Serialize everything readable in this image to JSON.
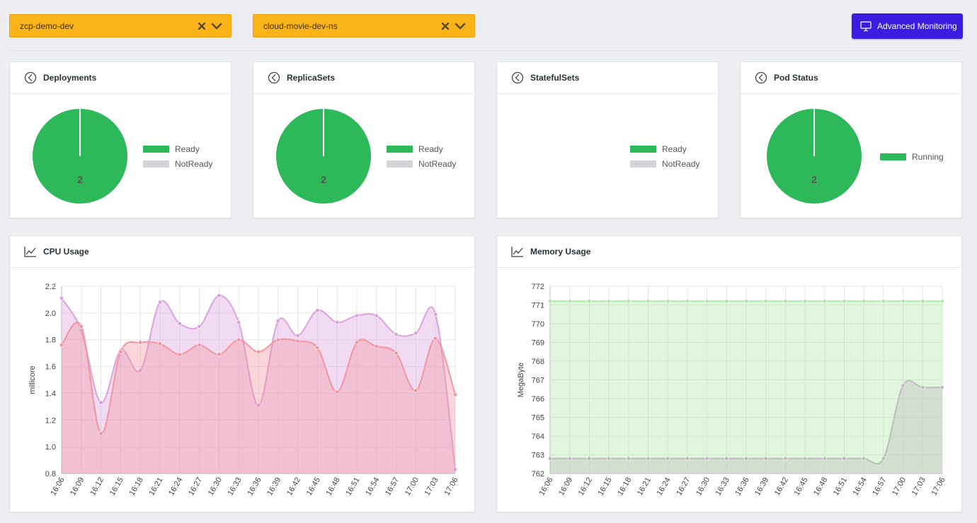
{
  "filters": {
    "cluster": "zcp-demo-dev",
    "namespace": "cloud-movie-dev-ns"
  },
  "toolbar": {
    "advanced_label": "Advanced Monitoring"
  },
  "colors": {
    "ready": "#2db85a",
    "notready": "#d2d4d8",
    "select_bg": "#fbb31a",
    "button_bg": "#3a1de0"
  },
  "cards": {
    "deployments": {
      "title": "Deployments",
      "value": "2",
      "legend": [
        "Ready",
        "NotReady"
      ]
    },
    "replicasets": {
      "title": "ReplicaSets",
      "value": "2",
      "legend": [
        "Ready",
        "NotReady"
      ]
    },
    "statefulsets": {
      "title": "StatefulSets",
      "legend": [
        "Ready",
        "NotReady"
      ]
    },
    "podstatus": {
      "title": "Pod Status",
      "value": "2",
      "legend": [
        "Running"
      ]
    }
  },
  "chart_data": [
    {
      "type": "area",
      "title": "CPU Usage",
      "xlabel": "",
      "ylabel": "millicore",
      "ylim": [
        0.8,
        2.2
      ],
      "yticks": [
        "0.8",
        "1.0",
        "1.2",
        "1.4",
        "1.6",
        "1.8",
        "2.0",
        "2.2"
      ],
      "categories": [
        "16:06",
        "16:09",
        "16:12",
        "16:15",
        "16:18",
        "16:21",
        "16:24",
        "16:27",
        "16:30",
        "16:33",
        "16:36",
        "16:39",
        "16:42",
        "16:45",
        "16:48",
        "16:51",
        "16:54",
        "16:57",
        "17:00",
        "17:03",
        "17:06"
      ],
      "grid": true,
      "series": [
        {
          "color": "#d9a0dc",
          "values": [
            2.11,
            1.87,
            1.33,
            1.72,
            1.57,
            2.08,
            1.92,
            1.9,
            2.13,
            1.93,
            1.31,
            1.94,
            1.83,
            2.02,
            1.93,
            1.98,
            1.98,
            1.84,
            1.85,
            1.99,
            0.83
          ]
        },
        {
          "color": "#f2929f",
          "values": [
            1.76,
            1.9,
            1.1,
            1.71,
            1.78,
            1.77,
            1.69,
            1.76,
            1.69,
            1.8,
            1.71,
            1.8,
            1.79,
            1.74,
            1.41,
            1.78,
            1.75,
            1.7,
            1.42,
            1.81,
            1.39
          ]
        }
      ]
    },
    {
      "type": "area",
      "title": "Memory Usage",
      "xlabel": "",
      "ylabel": "MegaByte",
      "ylim": [
        762,
        772
      ],
      "yticks": [
        "762",
        "763",
        "764",
        "765",
        "766",
        "767",
        "768",
        "769",
        "770",
        "771",
        "772"
      ],
      "categories": [
        "16:06",
        "16:09",
        "16:12",
        "16:15",
        "16:18",
        "16:21",
        "16:24",
        "16:27",
        "16:30",
        "16:33",
        "16:36",
        "16:39",
        "16:42",
        "16:45",
        "16:48",
        "16:51",
        "16:54",
        "16:57",
        "17:00",
        "17:03",
        "17:06"
      ],
      "grid": true,
      "series": [
        {
          "color": "#aee8a6",
          "values": [
            771.2,
            771.2,
            771.2,
            771.2,
            771.2,
            771.2,
            771.2,
            771.2,
            771.2,
            771.2,
            771.2,
            771.2,
            771.2,
            771.2,
            771.2,
            771.2,
            771.2,
            771.2,
            771.2,
            771.2,
            771.2
          ]
        },
        {
          "color": "#bdbdbd",
          "values": [
            762.8,
            762.8,
            762.8,
            762.8,
            762.8,
            762.8,
            762.8,
            762.8,
            762.8,
            762.8,
            762.8,
            762.8,
            762.8,
            762.8,
            762.8,
            762.8,
            762.8,
            762.8,
            766.7,
            766.6,
            766.6
          ]
        }
      ]
    }
  ]
}
